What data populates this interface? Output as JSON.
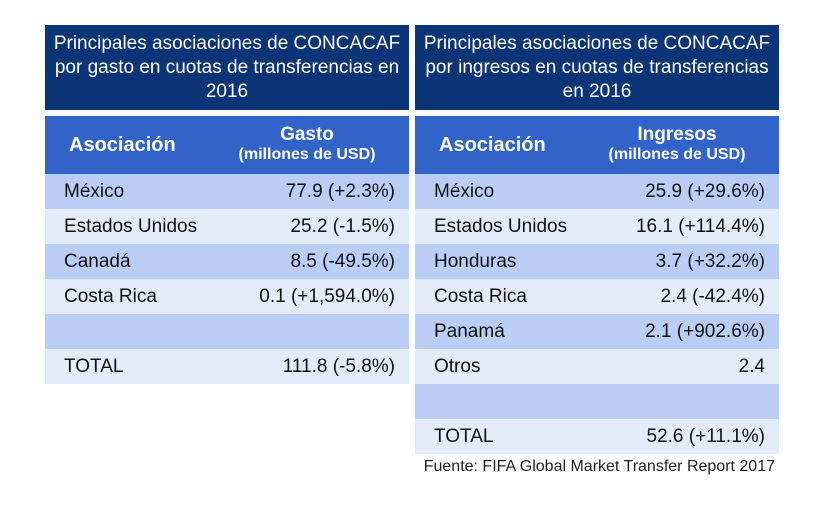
{
  "left_table": {
    "title": "Principales asociaciones de CONCACAF por gasto en cuotas de transferencias en 2016",
    "col1": "Asociación",
    "col2_line1": "Gasto",
    "col2_line2": "(millones de USD)",
    "rows": [
      {
        "name": "México",
        "value": "77.9 (+2.3%)"
      },
      {
        "name": "Estados Unidos",
        "value": "25.2 (-1.5%)"
      },
      {
        "name": "Canadá",
        "value": "8.5 (-49.5%)"
      },
      {
        "name": "Costa Rica",
        "value": "0.1 (+1,594.0%)"
      },
      {
        "name": "",
        "value": ""
      },
      {
        "name": "TOTAL",
        "value": "111.8 (-5.8%)"
      }
    ]
  },
  "right_table": {
    "title": "Principales asociaciones de CONCACAF por ingresos en cuotas de transferencias en 2016",
    "col1": "Asociación",
    "col2_line1": "Ingresos",
    "col2_line2": "(millones de USD)",
    "rows": [
      {
        "name": "México",
        "value": "25.9 (+29.6%)"
      },
      {
        "name": "Estados Unidos",
        "value": "16.1 (+114.4%)"
      },
      {
        "name": "Honduras",
        "value": "3.7 (+32.2%)"
      },
      {
        "name": "Costa Rica",
        "value": "2.4 (-42.4%)"
      },
      {
        "name": "Panamá",
        "value": "2.1 (+902.6%)"
      },
      {
        "name": "Otros",
        "value": "2.4"
      },
      {
        "name": "",
        "value": ""
      },
      {
        "name": "TOTAL",
        "value": "52.6 (+11.1%)"
      }
    ]
  },
  "source": "Fuente: FIFA Global Market Transfer Report 2017",
  "colors": {
    "title_bg": "#0c3577",
    "header_bg": "#3163c8",
    "row_dark": "#b9cdf5",
    "row_light": "#e4ebf8"
  }
}
